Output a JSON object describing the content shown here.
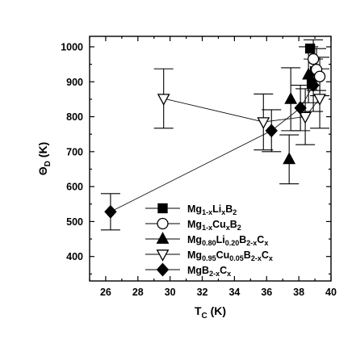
{
  "chart_data": {
    "type": "scatter",
    "xlabel": {
      "base": "T",
      "sub": "C",
      "unit": " (K)"
    },
    "ylabel": {
      "base": "Θ",
      "sub": "D",
      "unit": " (K)"
    },
    "xlim": [
      25,
      40
    ],
    "ylim": [
      330,
      1030
    ],
    "xticks": [
      26,
      28,
      30,
      32,
      34,
      36,
      38,
      40
    ],
    "yticks": [
      400,
      500,
      600,
      700,
      800,
      900,
      1000
    ],
    "legend_position": "bottom-right",
    "series": [
      {
        "marker": "square",
        "label_parts": [
          [
            "Mg",
            ""
          ],
          [
            "1-x",
            "sub"
          ],
          [
            "Li",
            ""
          ],
          [
            "x",
            "sub"
          ],
          [
            "B",
            ""
          ],
          [
            "2",
            "sub"
          ]
        ],
        "connected": false,
        "points": [
          {
            "x": 38.7,
            "y": 995,
            "err": 0
          },
          {
            "x": 38.8,
            "y": 895,
            "err": 0
          },
          {
            "x": 39.0,
            "y": 930,
            "err": 0
          }
        ]
      },
      {
        "marker": "circle",
        "label_parts": [
          [
            "Mg",
            ""
          ],
          [
            "1-x",
            "sub"
          ],
          [
            "Cu",
            ""
          ],
          [
            "x",
            "sub"
          ],
          [
            "B",
            ""
          ],
          [
            "2",
            "sub"
          ]
        ],
        "connected": false,
        "points": [
          {
            "x": 38.9,
            "y": 965,
            "err": 55
          },
          {
            "x": 39.1,
            "y": 935,
            "err": 60
          },
          {
            "x": 39.3,
            "y": 915,
            "err": 55
          }
        ]
      },
      {
        "marker": "triangle-up",
        "label_parts": [
          [
            "Mg",
            ""
          ],
          [
            "0.80",
            "sub"
          ],
          [
            "Li",
            ""
          ],
          [
            "0.20",
            "sub"
          ],
          [
            "B",
            ""
          ],
          [
            "2-x",
            "sub"
          ],
          [
            "C",
            ""
          ],
          [
            "x",
            "sub"
          ]
        ],
        "connected": false,
        "points": [
          {
            "x": 37.4,
            "y": 678,
            "err": 70
          },
          {
            "x": 37.5,
            "y": 850,
            "err": 90
          },
          {
            "x": 38.6,
            "y": 920,
            "err": 80
          }
        ]
      },
      {
        "marker": "triangle-down",
        "label_parts": [
          [
            "Mg",
            ""
          ],
          [
            "0.95",
            "sub"
          ],
          [
            "Cu",
            ""
          ],
          [
            "0.05",
            "sub"
          ],
          [
            "B",
            ""
          ],
          [
            "2-x",
            "sub"
          ],
          [
            "C",
            ""
          ],
          [
            "x",
            "sub"
          ]
        ],
        "connected": true,
        "points": [
          {
            "x": 29.6,
            "y": 852,
            "err": 85
          },
          {
            "x": 35.8,
            "y": 785,
            "err": 80
          },
          {
            "x": 38.4,
            "y": 800,
            "err": 80
          },
          {
            "x": 39.3,
            "y": 852,
            "err": 85
          }
        ]
      },
      {
        "marker": "diamond",
        "label_parts": [
          [
            "MgB",
            ""
          ],
          [
            "2-x",
            "sub"
          ],
          [
            "C",
            ""
          ],
          [
            "x",
            "sub"
          ]
        ],
        "connected": true,
        "points": [
          {
            "x": 26.3,
            "y": 528,
            "err": 52
          },
          {
            "x": 36.3,
            "y": 760,
            "err": 60
          },
          {
            "x": 38.1,
            "y": 825,
            "err": 65
          },
          {
            "x": 38.9,
            "y": 890,
            "err": 75
          }
        ]
      }
    ]
  }
}
